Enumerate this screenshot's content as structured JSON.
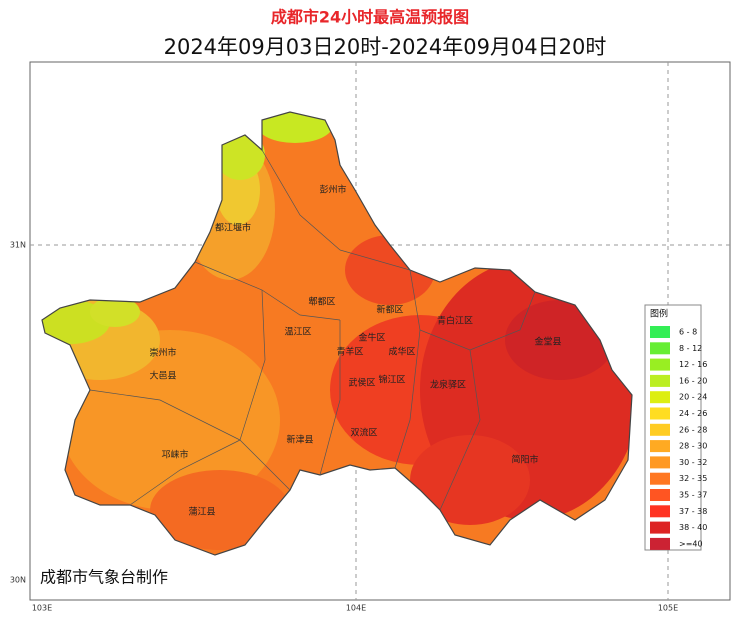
{
  "title": "成都市24小时最高温预报图",
  "subtitle": "2024年09月03日20时-2024年09月04日20时",
  "axes": {
    "x": [
      "103E",
      "104E",
      "105E"
    ],
    "y": [
      "31N",
      "30N"
    ]
  },
  "districts": [
    "彭州市",
    "都江堰市",
    "郫都区",
    "新都区",
    "青白江区",
    "金堂县",
    "温江区",
    "金牛区",
    "青羊区",
    "成华区",
    "崇州市",
    "大邑县",
    "武侯区",
    "锦江区",
    "龙泉驿区",
    "双流区",
    "新津县",
    "邛崃市",
    "简阳市",
    "蒲江县"
  ],
  "legend": {
    "title": "图例",
    "items": [
      {
        "label": "6 - 8",
        "color": "#33ee55"
      },
      {
        "label": "8 - 12",
        "color": "#66ee33"
      },
      {
        "label": "12 - 16",
        "color": "#99ee22"
      },
      {
        "label": "16 - 20",
        "color": "#bbee22"
      },
      {
        "label": "20 - 24",
        "color": "#ddee11"
      },
      {
        "label": "24 - 26",
        "color": "#ffdd22"
      },
      {
        "label": "26 - 28",
        "color": "#ffcc22"
      },
      {
        "label": "28 - 30",
        "color": "#ffaa22"
      },
      {
        "label": "30 - 32",
        "color": "#ff9922"
      },
      {
        "label": "32 - 35",
        "color": "#ff7722"
      },
      {
        "label": "35 - 37",
        "color": "#ff5522"
      },
      {
        "label": "37 - 38",
        "color": "#ff3322"
      },
      {
        "label": "38 - 40",
        "color": "#dd2222"
      },
      {
        "label": ">=40",
        "color": "#cc2233"
      }
    ]
  },
  "credit": "成都市气象台制作"
}
